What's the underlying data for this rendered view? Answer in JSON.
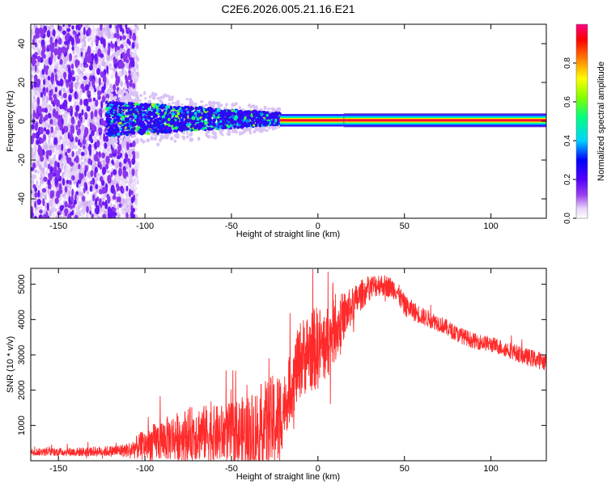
{
  "title": "C2E6.2026.005.21.16.E21",
  "chart_data": [
    {
      "type": "heatmap",
      "xlabel": "Height of straight line (km)",
      "ylabel": "Frequency (Hz)",
      "xlim": [
        -166,
        132
      ],
      "ylim": [
        -50,
        50
      ],
      "xticks": [
        -150,
        -100,
        -50,
        0,
        50,
        100
      ],
      "yticks": [
        -40,
        -20,
        0,
        20,
        40
      ],
      "xtick_labels": [
        "-150",
        "-100",
        "-50",
        "0",
        "50",
        "100"
      ],
      "ytick_labels": [
        "-40",
        "-20",
        "0",
        "20",
        "40"
      ],
      "regions": [
        {
          "name": "noise",
          "x_range": [
            -166,
            -110
          ],
          "freq_spread": 50,
          "amplitude": "0.0-0.2"
        },
        {
          "name": "meteor-head-echo",
          "x_range": [
            -122,
            -22
          ],
          "freq_spread_start": 9,
          "freq_spread_end": 3,
          "amplitude": "0.2-0.6"
        },
        {
          "name": "trail-line",
          "x_range": [
            -22,
            132
          ],
          "frequency": 0.5,
          "amplitude": "0.9-1.0"
        }
      ],
      "colorbar": {
        "label": "Normalized spectral amplitude",
        "range": [
          0,
          1
        ],
        "ticks": [
          0.0,
          0.2,
          0.4,
          0.6,
          0.8
        ],
        "tick_labels": [
          "0.0",
          "0.2",
          "0.4",
          "0.6",
          "0.8"
        ],
        "colormap": [
          "#ffffff",
          "#e8d4fa",
          "#9a3ff0",
          "#5200ff",
          "#0000ff",
          "#00d4ff",
          "#00ff80",
          "#80ff00",
          "#ffff00",
          "#ff8000",
          "#ff0000",
          "#ff0080"
        ]
      }
    },
    {
      "type": "line",
      "xlabel": "Height of straight line (km)",
      "ylabel": "SNR (10 * v/v)",
      "xlim": [
        -166,
        132
      ],
      "ylim": [
        0,
        5450
      ],
      "xticks": [
        -150,
        -100,
        -50,
        0,
        50,
        100
      ],
      "yticks": [
        1000,
        2000,
        3000,
        4000,
        5000
      ],
      "xtick_labels": [
        "-150",
        "-100",
        "-50",
        "0",
        "50",
        "100"
      ],
      "ytick_labels": [
        "1000",
        "2000",
        "3000",
        "4000",
        "5000"
      ],
      "color": "#ff2a2a",
      "envelope": {
        "x": [
          -166,
          -140,
          -120,
          -110,
          -100,
          -90,
          -80,
          -70,
          -60,
          -50,
          -40,
          -35,
          -30,
          -25,
          -22,
          -20,
          -15,
          -10,
          -5,
          0,
          5,
          10,
          15,
          20,
          25,
          30,
          35,
          40,
          45,
          50,
          60,
          70,
          80,
          90,
          100,
          110,
          120,
          132
        ],
        "y": [
          250,
          250,
          270,
          300,
          450,
          600,
          700,
          800,
          750,
          750,
          800,
          900,
          1000,
          1100,
          1200,
          1500,
          2200,
          2900,
          3100,
          3200,
          3300,
          3700,
          4100,
          4400,
          4700,
          4900,
          5000,
          4950,
          4850,
          4400,
          4100,
          3900,
          3600,
          3400,
          3300,
          3150,
          2950,
          2800
        ]
      },
      "noise": {
        "x": [
          -166,
          -140,
          -120,
          -110,
          -100,
          -90,
          -80,
          -70,
          -60,
          -50,
          -40,
          -30,
          -22,
          -20,
          -10,
          0,
          10,
          20,
          30,
          40,
          50,
          60,
          80,
          100,
          132
        ],
        "amplitude": [
          100,
          120,
          150,
          200,
          450,
          600,
          700,
          800,
          800,
          900,
          1100,
          1300,
          1400,
          900,
          1100,
          1200,
          900,
          500,
          350,
          300,
          300,
          250,
          220,
          220,
          250
        ]
      }
    }
  ]
}
